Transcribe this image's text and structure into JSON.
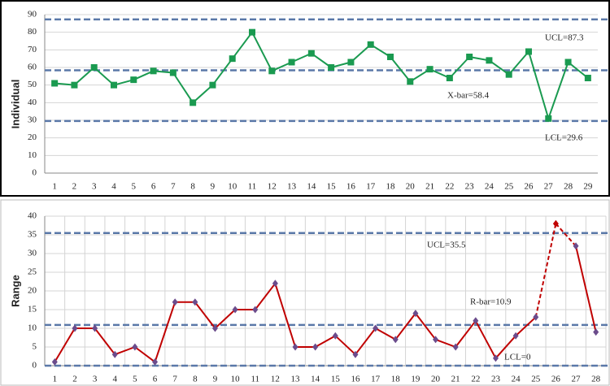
{
  "chart_data": [
    {
      "type": "line",
      "y_label": "Individual",
      "categories": [
        "1",
        "2",
        "3",
        "4",
        "5",
        "6",
        "7",
        "8",
        "9",
        "10",
        "11",
        "12",
        "13",
        "14",
        "15",
        "16",
        "17",
        "18",
        "20",
        "21",
        "22",
        "23",
        "24",
        "25",
        "26",
        "27",
        "28",
        "29"
      ],
      "series": [
        {
          "color": "#1a9a50",
          "marker": "square",
          "marker_color": "#1a9a50",
          "values": [
            51,
            50,
            60,
            50,
            53,
            58,
            57,
            40,
            50,
            65,
            80,
            58,
            63,
            68,
            60,
            63,
            73,
            66,
            52,
            59,
            54,
            66,
            64,
            56,
            69,
            31,
            63,
            54
          ]
        }
      ],
      "ylim": [
        0,
        90
      ],
      "yticks": [
        0,
        10,
        20,
        30,
        40,
        50,
        60,
        70,
        80,
        90
      ],
      "grid": true,
      "xgrid": false,
      "control_lines": [
        {
          "label": "UCL=87.3",
          "value": 87.3
        },
        {
          "label": "X-bar=58.4",
          "value": 58.4
        },
        {
          "label": "LCL=29.6",
          "value": 29.6
        }
      ],
      "control_color": "#5a78a8"
    },
    {
      "type": "line",
      "y_label": "Range",
      "categories": [
        "1",
        "2",
        "3",
        "4",
        "5",
        "6",
        "7",
        "8",
        "9",
        "10",
        "11",
        "12",
        "13",
        "14",
        "15",
        "16",
        "17",
        "18",
        "19",
        "20",
        "21",
        "22",
        "23",
        "24",
        "25",
        "26",
        "27",
        "28"
      ],
      "series": [
        {
          "color": "#c00000",
          "marker": "diamond",
          "marker_color": "#6b4c8c",
          "values": [
            1,
            10,
            10,
            3,
            5,
            1,
            17,
            17,
            10,
            15,
            15,
            22,
            5,
            5,
            8,
            3,
            10,
            7,
            14,
            7,
            5,
            12,
            2,
            8,
            13,
            38,
            32,
            9
          ]
        }
      ],
      "dashed_points": [
        25
      ],
      "ylim": [
        0,
        40
      ],
      "yticks": [
        0,
        5,
        10,
        15,
        20,
        25,
        30,
        35,
        40
      ],
      "grid": true,
      "xgrid": true,
      "control_lines": [
        {
          "label": "UCL=35.5",
          "value": 35.5
        },
        {
          "label": "R-bar=10.9",
          "value": 10.9
        },
        {
          "label": "LCL=0",
          "value": 0
        }
      ],
      "control_color": "#5a78a8"
    }
  ]
}
